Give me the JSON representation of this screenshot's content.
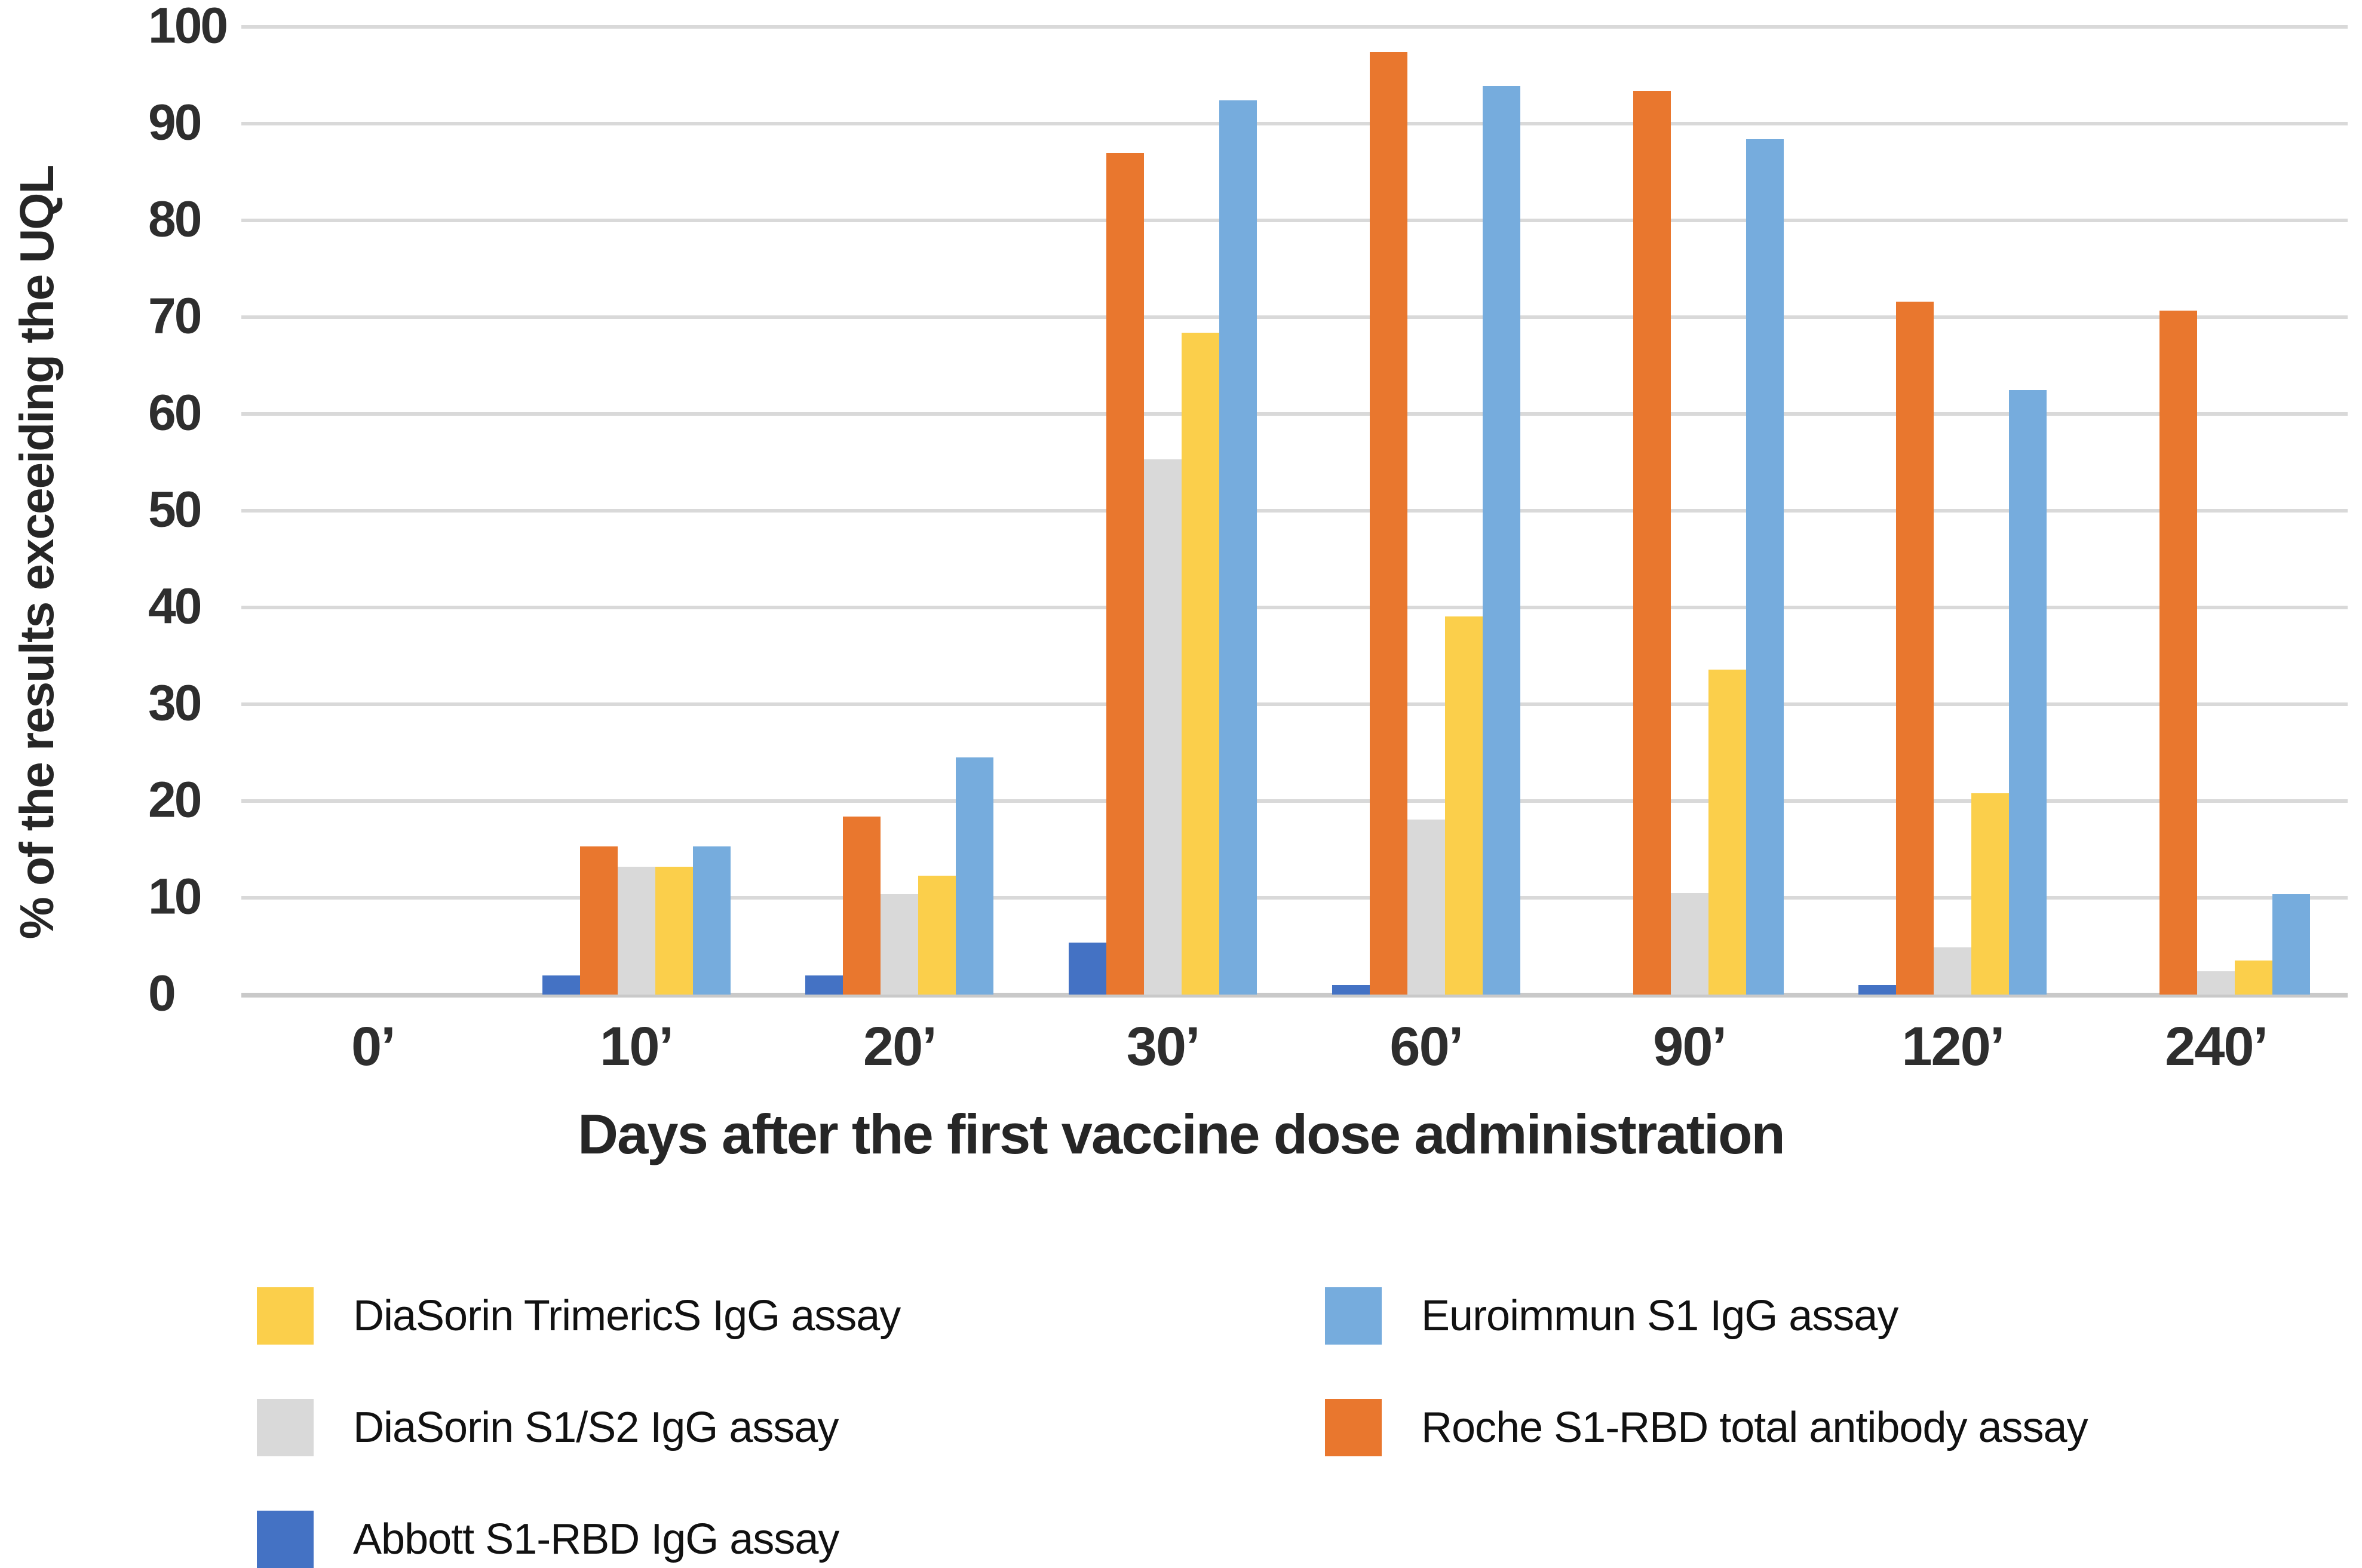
{
  "chart_data": {
    "type": "bar",
    "title": "",
    "xlabel": "Days after the first vaccine dose administration",
    "ylabel": "% of the results exceeiding the UQL",
    "categories": [
      "0’",
      "10’",
      "20’",
      "30’",
      "60’",
      "90’",
      "120’",
      "240’"
    ],
    "ylim": [
      0,
      100
    ],
    "yticks": [
      0,
      10,
      20,
      30,
      40,
      50,
      60,
      70,
      80,
      90,
      100
    ],
    "grid": "horizontal",
    "legend_position": "bottom",
    "bar_order_note": "bars drawn left-to-right within each group in series order below; zero values keep an empty slot",
    "series": [
      {
        "name": "Abbott S1-RBD IgG assay",
        "color": "#4472C4",
        "values": [
          0,
          2,
          2,
          5.4,
          1,
          0,
          1,
          0
        ]
      },
      {
        "name": "Roche S1-RBD total antibody assay",
        "color": "#E9772E",
        "values": [
          0,
          15.3,
          18.4,
          87,
          97.4,
          93.4,
          71.6,
          70.7
        ]
      },
      {
        "name": "DiaSorin S1/S2 IgG assay",
        "color": "#D9D9D9",
        "values": [
          0,
          13.2,
          10.4,
          55.3,
          18.1,
          10.5,
          4.9,
          2.4
        ]
      },
      {
        "name": "DiaSorin TrimericS IgG assay",
        "color": "#FBCF4B",
        "values": [
          0,
          13.2,
          12.3,
          68.4,
          39.1,
          33.6,
          20.8,
          3.5
        ]
      },
      {
        "name": "Euroimmun S1 IgG assay",
        "color": "#76ACDD",
        "values": [
          0,
          15.3,
          24.5,
          92.4,
          93.9,
          88.4,
          62.5,
          10.4
        ]
      }
    ],
    "colors": {
      "grid": "#D9D9D9",
      "axis_baseline": "#C9C9C9",
      "tick_text": "#2E2E2E",
      "title_text": "#262626",
      "legend_text": "#111111",
      "background": "#FFFFFF"
    }
  },
  "legend": {
    "columns": [
      {
        "items": [
          {
            "label": "DiaSorin TrimericS IgG assay",
            "color": "#FBCF4B"
          },
          {
            "label": "DiaSorin S1/S2 IgG assay",
            "color": "#D9D9D9"
          },
          {
            "label": "Abbott S1-RBD IgG assay",
            "color": "#4472C4"
          }
        ]
      },
      {
        "items": [
          {
            "label": "Euroimmun S1 IgG assay",
            "color": "#76ACDD"
          },
          {
            "label": "Roche S1-RBD total antibody assay",
            "color": "#E9772E"
          }
        ]
      }
    ]
  }
}
